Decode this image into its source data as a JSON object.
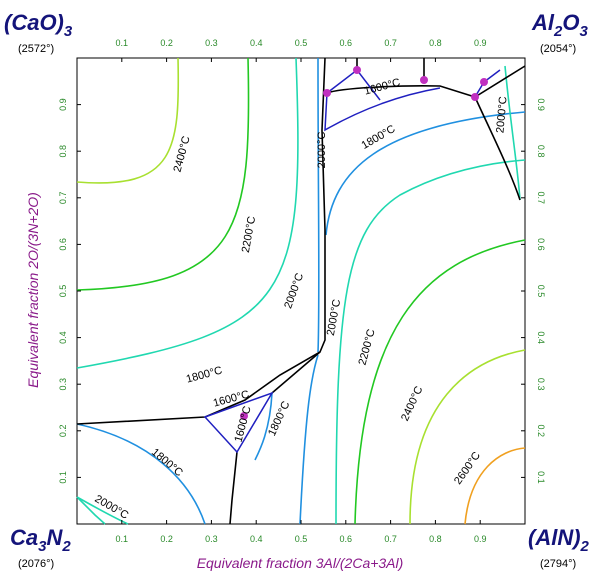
{
  "corners": {
    "top_left": {
      "text": "(CaO)",
      "sub": "3",
      "temp": "(2572°)"
    },
    "top_right": {
      "text": "Al",
      "sub": "2",
      "text2": "O",
      "sub2": "3",
      "temp": "(2054°)"
    },
    "bottom_left": {
      "text": "Ca",
      "sub": "3",
      "text2": "N",
      "sub2": "2",
      "temp": "(2076°)"
    },
    "bottom_right": {
      "text": "(AlN)",
      "sub": "2",
      "temp": "(2794°)"
    }
  },
  "x_axis": {
    "label": "Equivalent fraction  3Al/(2Ca+3Al)",
    "ticks": [
      0.1,
      0.2,
      0.3,
      0.4,
      0.5,
      0.6,
      0.7,
      0.8,
      0.9
    ]
  },
  "y_axis": {
    "label": "Equivalent fraction  2O/(3N+2O)",
    "ticks": [
      0.1,
      0.2,
      0.3,
      0.4,
      0.5,
      0.6,
      0.7,
      0.8,
      0.9
    ]
  },
  "isotherm_labels": [
    "2400°C",
    "2200°C",
    "2000°C",
    "1800°C",
    "1600°C",
    "1600°C",
    "1800°C",
    "1800°C",
    "2000°C",
    "2000°C",
    "2200°C",
    "2400°C",
    "2600°C",
    "1800°C",
    "1600°C",
    "2000°C",
    "2000°C"
  ]
}
